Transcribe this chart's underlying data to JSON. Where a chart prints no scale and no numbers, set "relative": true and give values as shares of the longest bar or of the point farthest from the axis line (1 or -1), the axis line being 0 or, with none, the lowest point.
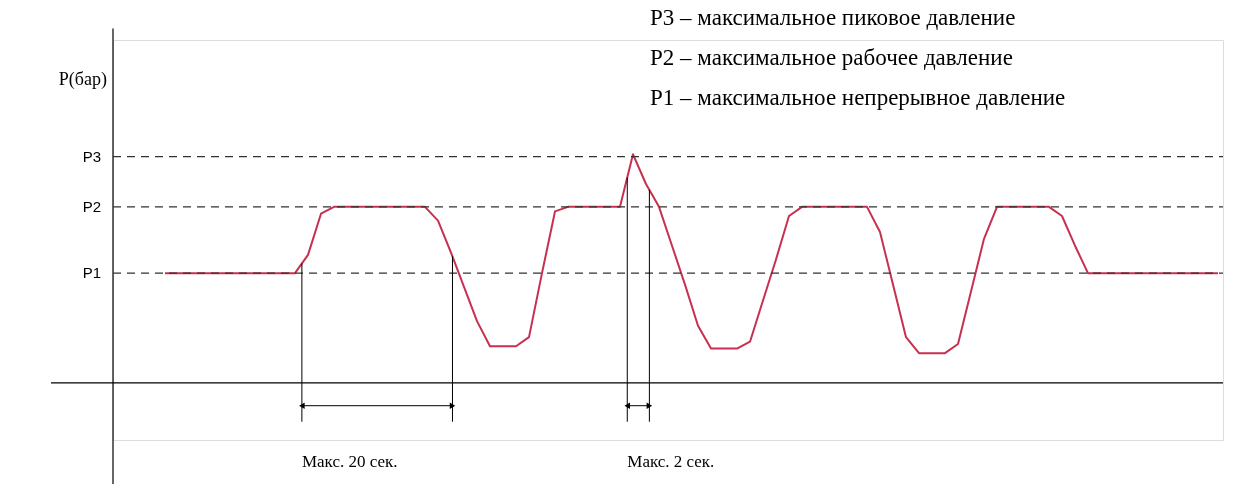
{
  "chart_data": {
    "type": "line",
    "relative": true,
    "ylabel": "P(бар)",
    "tick_labels": false,
    "grid": false,
    "marker": "none",
    "line_style": "solid",
    "categories": [
      null,
      null,
      null,
      null,
      null,
      null,
      null,
      null,
      null,
      null,
      null,
      null,
      null,
      null,
      null,
      null,
      null,
      null,
      null,
      null,
      null,
      null,
      null,
      null,
      null,
      null,
      null,
      null,
      null,
      null,
      null,
      null,
      null,
      null,
      null,
      null,
      null,
      null,
      null,
      null,
      null,
      null,
      null,
      null,
      null,
      null,
      null,
      null,
      null,
      null,
      null,
      null,
      null,
      null,
      null,
      null,
      null,
      null,
      null,
      null,
      null,
      null,
      null,
      null,
      null,
      null,
      null,
      null,
      null,
      null,
      null,
      null,
      null,
      null,
      null,
      null,
      null,
      null,
      null,
      null,
      null,
      null
    ],
    "series": [
      {
        "color": "#c8304f",
        "values": [
          0.48,
          0.48,
          0.48,
          0.48,
          0.48,
          0.48,
          0.48,
          0.48,
          0.48,
          0.48,
          0.48,
          0.56,
          0.74,
          0.77,
          0.77,
          0.77,
          0.77,
          0.77,
          0.77,
          0.77,
          0.77,
          0.71,
          0.57,
          0.42,
          0.27,
          0.16,
          0.16,
          0.16,
          0.2,
          0.48,
          0.75,
          0.77,
          0.77,
          0.77,
          0.77,
          0.77,
          1,
          0.87,
          0.77,
          0.6,
          0.43,
          0.25,
          0.15,
          0.15,
          0.15,
          0.18,
          0.36,
          0.54,
          0.73,
          0.77,
          0.77,
          0.77,
          0.77,
          0.77,
          0.77,
          0.66,
          0.43,
          0.2,
          0.13,
          0.13,
          0.13,
          0.17,
          0.4,
          0.63,
          0.77,
          0.77,
          0.77,
          0.77,
          0.77,
          0.73,
          0.6,
          0.48,
          0.48,
          0.48,
          0.48,
          0.48,
          0.48,
          0.48,
          0.48,
          0.48,
          0.48,
          0.48
        ]
      }
    ],
    "ref_lines": [
      {
        "axis": "y",
        "value": 0.99,
        "label": "P3",
        "color": "#333333",
        "line_style": "dashed"
      },
      {
        "axis": "y",
        "value": 0.77,
        "label": "P2",
        "color": "#333333",
        "line_style": "dashed"
      },
      {
        "axis": "y",
        "value": 0.48,
        "label": "P1",
        "color": "#333333",
        "line_style": "dashed"
      }
    ],
    "annotations": [
      "P3 – максимальное пиковое давление",
      "P2 – максимальное рабочее давление",
      "P1 – максимальное непрерывное давление",
      "Макс. 20 сек.",
      "Макс. 2 сек."
    ]
  }
}
